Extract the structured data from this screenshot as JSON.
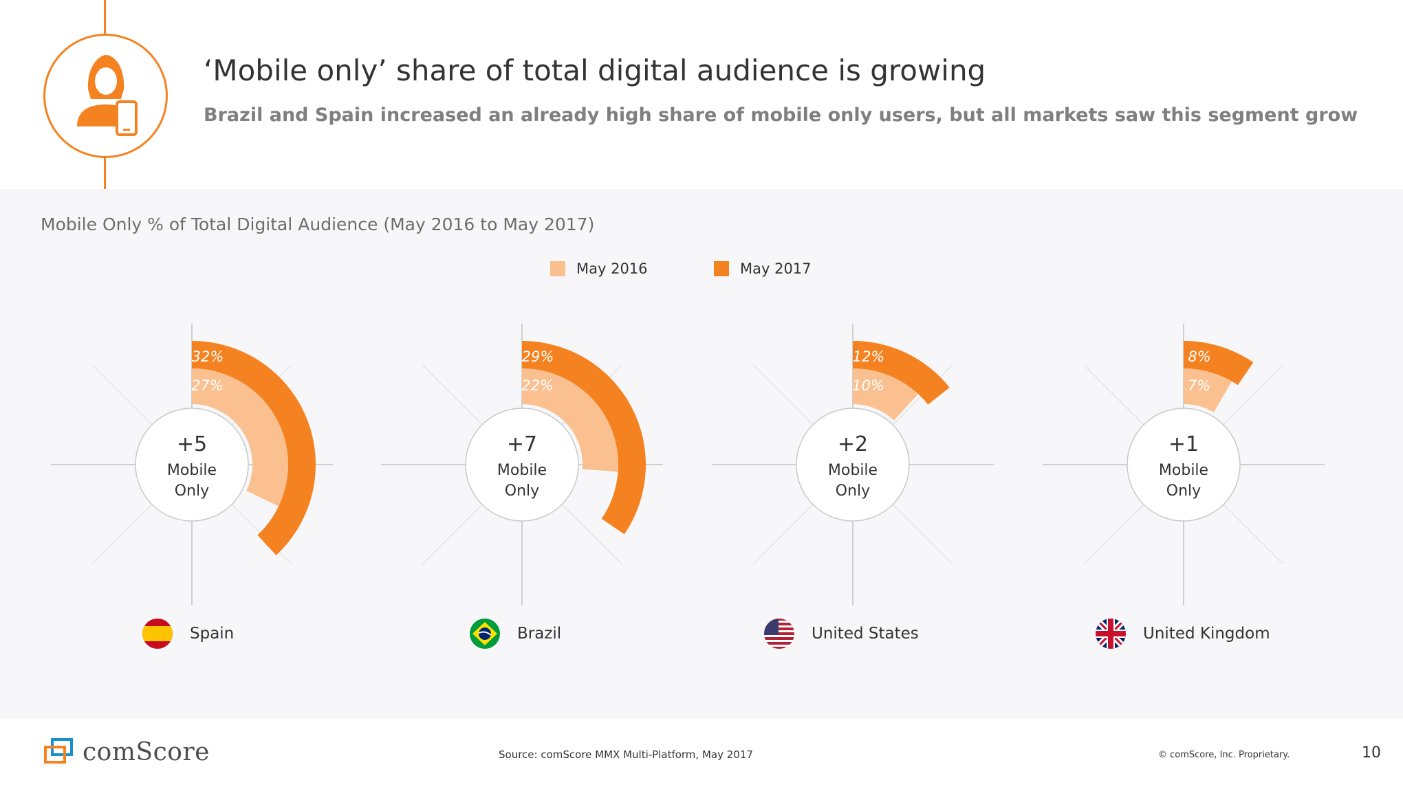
{
  "header": {
    "title": "‘Mobile only’ share of total digital audience is growing",
    "subtitle": "Brazil and Spain increased an already high share of mobile only users, but all markets saw this segment grow",
    "icon": "mobile-user-icon"
  },
  "colors": {
    "accent": "#f58220",
    "light": "#fac08f",
    "panel": "#f7f7f9"
  },
  "chart_data": {
    "type": "radial-bar",
    "title": "Mobile Only % of Total Digital Audience (May 2016 to May 2017)",
    "series_names": [
      "May 2016",
      "May 2017"
    ],
    "legend": [
      {
        "label": "May 2016",
        "color": "#fac08f"
      },
      {
        "label": "May 2017",
        "color": "#f58220"
      }
    ],
    "unit": "%",
    "markets": [
      {
        "country": "Spain",
        "flag": "spain-flag-icon",
        "may_2016": 27,
        "may_2017": 32,
        "label_2016": "27%",
        "label_2017": "32%",
        "change": "+5",
        "center_line1": "Mobile",
        "center_line2": "Only"
      },
      {
        "country": "Brazil",
        "flag": "brazil-flag-icon",
        "may_2016": 22,
        "may_2017": 29,
        "label_2016": "22%",
        "label_2017": "29%",
        "change": "+7",
        "center_line1": "Mobile",
        "center_line2": "Only"
      },
      {
        "country": "United States",
        "flag": "us-flag-icon",
        "may_2016": 10,
        "may_2017": 12,
        "label_2016": "10%",
        "label_2017": "12%",
        "change": "+2",
        "center_line1": "Mobile",
        "center_line2": "Only"
      },
      {
        "country": "United Kingdom",
        "flag": "uk-flag-icon",
        "may_2016": 7,
        "may_2017": 8,
        "label_2016": "7%",
        "label_2017": "8%",
        "change": "+1",
        "center_line1": "Mobile",
        "center_line2": "Only"
      }
    ]
  },
  "footer": {
    "logo_text": "comScore",
    "source": "Source: comScore MMX Multi-Platform, May 2017",
    "copyright": "© comScore, Inc. Proprietary.",
    "page_number": "10"
  }
}
